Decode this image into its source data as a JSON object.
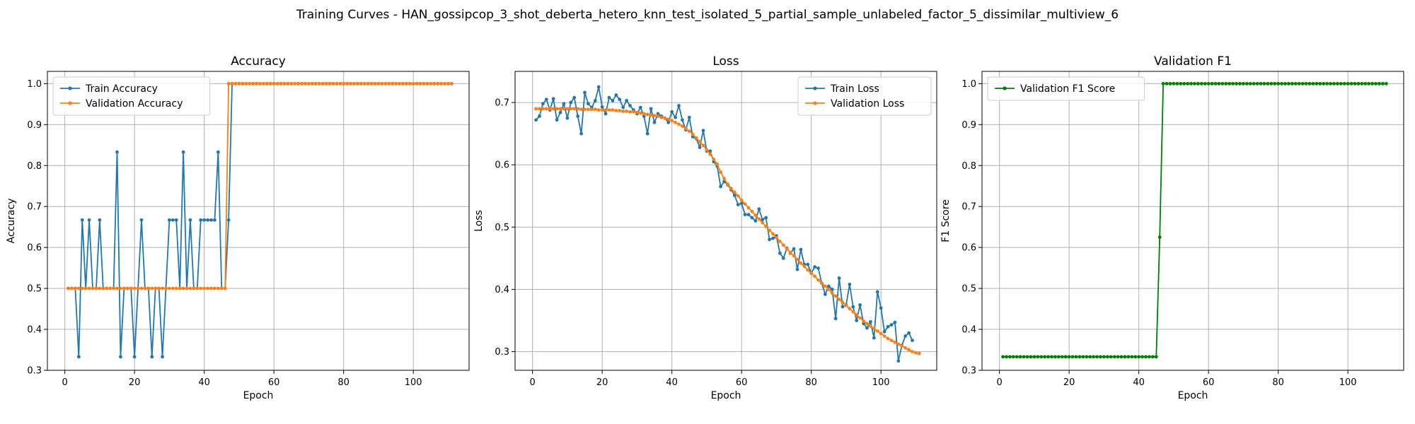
{
  "figure": {
    "title": "Training Curves - HAN_gossipcop_3_shot_deberta_hetero_knn_test_isolated_5_partial_sample_unlabeled_factor_5_dissimilar_multiview_6"
  },
  "chart_data": [
    {
      "id": "accuracy",
      "type": "line",
      "title": "Accuracy",
      "xlabel": "Epoch",
      "ylabel": "Accuracy",
      "xlim": [
        -5,
        116
      ],
      "ylim": [
        0.3,
        1.03
      ],
      "xticks": [
        0,
        20,
        40,
        60,
        80,
        100
      ],
      "yticks": [
        0.3,
        0.4,
        0.5,
        0.6,
        0.7,
        0.8,
        0.9,
        1.0
      ],
      "ytick_labels": [
        "0.3",
        "0.4",
        "0.5",
        "0.6",
        "0.7",
        "0.8",
        "0.9",
        "1.0"
      ],
      "grid": true,
      "legend": "upper-left",
      "x_start": 1,
      "series": [
        {
          "name": "Train Accuracy",
          "color": "#1f77b4",
          "values": [
            0.5,
            0.5,
            0.5,
            0.333,
            0.667,
            0.5,
            0.667,
            0.5,
            0.5,
            0.667,
            0.5,
            0.5,
            0.5,
            0.5,
            0.833,
            0.333,
            0.5,
            0.5,
            0.5,
            0.333,
            0.5,
            0.667,
            0.5,
            0.5,
            0.333,
            0.5,
            0.5,
            0.333,
            0.5,
            0.667,
            0.667,
            0.667,
            0.5,
            0.833,
            0.5,
            0.667,
            0.5,
            0.5,
            0.667,
            0.667,
            0.667,
            0.667,
            0.667,
            0.833,
            0.5,
            0.5,
            0.667,
            1.0,
            1.0,
            1.0,
            1.0,
            1.0,
            1.0,
            1.0,
            1.0,
            1.0,
            1.0,
            1.0,
            1.0,
            1.0,
            1.0,
            1.0,
            1.0,
            1.0,
            1.0,
            1.0,
            1.0,
            1.0,
            1.0,
            1.0,
            1.0,
            1.0,
            1.0,
            1.0,
            1.0,
            1.0,
            1.0,
            1.0,
            1.0,
            1.0,
            1.0,
            1.0,
            1.0,
            1.0,
            1.0,
            1.0,
            1.0,
            1.0,
            1.0,
            1.0,
            1.0,
            1.0,
            1.0,
            1.0,
            1.0,
            1.0,
            1.0,
            1.0,
            1.0,
            1.0,
            1.0,
            1.0,
            1.0,
            1.0,
            1.0,
            1.0,
            1.0,
            1.0,
            1.0,
            1.0,
            1.0
          ]
        },
        {
          "name": "Validation Accuracy",
          "color": "#ff7f0e",
          "values": [
            0.5,
            0.5,
            0.5,
            0.5,
            0.5,
            0.5,
            0.5,
            0.5,
            0.5,
            0.5,
            0.5,
            0.5,
            0.5,
            0.5,
            0.5,
            0.5,
            0.5,
            0.5,
            0.5,
            0.5,
            0.5,
            0.5,
            0.5,
            0.5,
            0.5,
            0.5,
            0.5,
            0.5,
            0.5,
            0.5,
            0.5,
            0.5,
            0.5,
            0.5,
            0.5,
            0.5,
            0.5,
            0.5,
            0.5,
            0.5,
            0.5,
            0.5,
            0.5,
            0.5,
            0.5,
            0.5,
            1.0,
            1.0,
            1.0,
            1.0,
            1.0,
            1.0,
            1.0,
            1.0,
            1.0,
            1.0,
            1.0,
            1.0,
            1.0,
            1.0,
            1.0,
            1.0,
            1.0,
            1.0,
            1.0,
            1.0,
            1.0,
            1.0,
            1.0,
            1.0,
            1.0,
            1.0,
            1.0,
            1.0,
            1.0,
            1.0,
            1.0,
            1.0,
            1.0,
            1.0,
            1.0,
            1.0,
            1.0,
            1.0,
            1.0,
            1.0,
            1.0,
            1.0,
            1.0,
            1.0,
            1.0,
            1.0,
            1.0,
            1.0,
            1.0,
            1.0,
            1.0,
            1.0,
            1.0,
            1.0,
            1.0,
            1.0,
            1.0,
            1.0,
            1.0,
            1.0,
            1.0,
            1.0,
            1.0,
            1.0,
            1.0
          ]
        }
      ]
    },
    {
      "id": "loss",
      "type": "line",
      "title": "Loss",
      "xlabel": "Epoch",
      "ylabel": "Loss",
      "xlim": [
        -5,
        116
      ],
      "ylim": [
        0.27,
        0.75
      ],
      "xticks": [
        0,
        20,
        40,
        60,
        80,
        100
      ],
      "yticks": [
        0.3,
        0.4,
        0.5,
        0.6,
        0.7
      ],
      "ytick_labels": [
        "0.3",
        "0.4",
        "0.5",
        "0.6",
        "0.7"
      ],
      "grid": true,
      "legend": "upper-right",
      "x_start": 1,
      "series": [
        {
          "name": "Train Loss",
          "color": "#1f77b4",
          "values": [
            0.672,
            0.678,
            0.698,
            0.705,
            0.688,
            0.706,
            0.672,
            0.684,
            0.698,
            0.675,
            0.7,
            0.708,
            0.678,
            0.65,
            0.716,
            0.698,
            0.692,
            0.703,
            0.725,
            0.693,
            0.682,
            0.708,
            0.703,
            0.712,
            0.705,
            0.692,
            0.703,
            0.695,
            0.688,
            0.682,
            0.692,
            0.678,
            0.65,
            0.69,
            0.668,
            0.682,
            0.678,
            0.675,
            0.668,
            0.685,
            0.676,
            0.695,
            0.672,
            0.656,
            0.676,
            0.645,
            0.642,
            0.628,
            0.655,
            0.622,
            0.622,
            0.605,
            0.598,
            0.565,
            0.573,
            0.568,
            0.56,
            0.551,
            0.536,
            0.538,
            0.52,
            0.52,
            0.515,
            0.51,
            0.529,
            0.512,
            0.515,
            0.48,
            0.482,
            0.486,
            0.458,
            0.45,
            0.466,
            0.458,
            0.465,
            0.432,
            0.464,
            0.44,
            0.44,
            0.426,
            0.436,
            0.434,
            0.41,
            0.392,
            0.405,
            0.4,
            0.353,
            0.418,
            0.372,
            0.375,
            0.408,
            0.372,
            0.35,
            0.375,
            0.345,
            0.338,
            0.348,
            0.322,
            0.396,
            0.37,
            0.332,
            0.34,
            0.343,
            0.347,
            0.285,
            0.31,
            0.325,
            0.33,
            0.318
          ]
        },
        {
          "name": "Validation Loss",
          "color": "#ff7f0e",
          "values": [
            0.69,
            0.69,
            0.69,
            0.69,
            0.69,
            0.69,
            0.69,
            0.69,
            0.69,
            0.69,
            0.69,
            0.69,
            0.69,
            0.689,
            0.689,
            0.689,
            0.689,
            0.689,
            0.688,
            0.688,
            0.688,
            0.688,
            0.688,
            0.687,
            0.687,
            0.686,
            0.686,
            0.685,
            0.685,
            0.684,
            0.683,
            0.682,
            0.681,
            0.68,
            0.679,
            0.678,
            0.676,
            0.675,
            0.673,
            0.671,
            0.668,
            0.665,
            0.662,
            0.658,
            0.654,
            0.649,
            0.643,
            0.637,
            0.631,
            0.624,
            0.617,
            0.609,
            0.601,
            0.588,
            0.578,
            0.569,
            0.562,
            0.556,
            0.55,
            0.543,
            0.537,
            0.531,
            0.525,
            0.519,
            0.513,
            0.507,
            0.501,
            0.495,
            0.489,
            0.483,
            0.477,
            0.471,
            0.465,
            0.459,
            0.454,
            0.448,
            0.442,
            0.437,
            0.431,
            0.426,
            0.421,
            0.415,
            0.41,
            0.405,
            0.4,
            0.394,
            0.389,
            0.384,
            0.379,
            0.374,
            0.369,
            0.364,
            0.359,
            0.354,
            0.349,
            0.345,
            0.341,
            0.337,
            0.333,
            0.329,
            0.325,
            0.321,
            0.318,
            0.315,
            0.312,
            0.309,
            0.306,
            0.303,
            0.3,
            0.298,
            0.297
          ]
        }
      ]
    },
    {
      "id": "f1",
      "type": "line",
      "title": "Validation F1",
      "xlabel": "Epoch",
      "ylabel": "F1 Score",
      "xlim": [
        -5,
        116
      ],
      "ylim": [
        0.3,
        1.03
      ],
      "xticks": [
        0,
        20,
        40,
        60,
        80,
        100
      ],
      "yticks": [
        0.3,
        0.4,
        0.5,
        0.6,
        0.7,
        0.8,
        0.9,
        1.0
      ],
      "ytick_labels": [
        "0.3",
        "0.4",
        "0.5",
        "0.6",
        "0.7",
        "0.8",
        "0.9",
        "1.0"
      ],
      "grid": true,
      "legend": "upper-left",
      "x_start": 1,
      "series": [
        {
          "name": "Validation F1 Score",
          "color": "#008000",
          "values": [
            0.333,
            0.333,
            0.333,
            0.333,
            0.333,
            0.333,
            0.333,
            0.333,
            0.333,
            0.333,
            0.333,
            0.333,
            0.333,
            0.333,
            0.333,
            0.333,
            0.333,
            0.333,
            0.333,
            0.333,
            0.333,
            0.333,
            0.333,
            0.333,
            0.333,
            0.333,
            0.333,
            0.333,
            0.333,
            0.333,
            0.333,
            0.333,
            0.333,
            0.333,
            0.333,
            0.333,
            0.333,
            0.333,
            0.333,
            0.333,
            0.333,
            0.333,
            0.333,
            0.333,
            0.333,
            0.625,
            1.0,
            1.0,
            1.0,
            1.0,
            1.0,
            1.0,
            1.0,
            1.0,
            1.0,
            1.0,
            1.0,
            1.0,
            1.0,
            1.0,
            1.0,
            1.0,
            1.0,
            1.0,
            1.0,
            1.0,
            1.0,
            1.0,
            1.0,
            1.0,
            1.0,
            1.0,
            1.0,
            1.0,
            1.0,
            1.0,
            1.0,
            1.0,
            1.0,
            1.0,
            1.0,
            1.0,
            1.0,
            1.0,
            1.0,
            1.0,
            1.0,
            1.0,
            1.0,
            1.0,
            1.0,
            1.0,
            1.0,
            1.0,
            1.0,
            1.0,
            1.0,
            1.0,
            1.0,
            1.0,
            1.0,
            1.0,
            1.0,
            1.0,
            1.0,
            1.0,
            1.0,
            1.0,
            1.0,
            1.0,
            1.0
          ]
        }
      ]
    }
  ]
}
